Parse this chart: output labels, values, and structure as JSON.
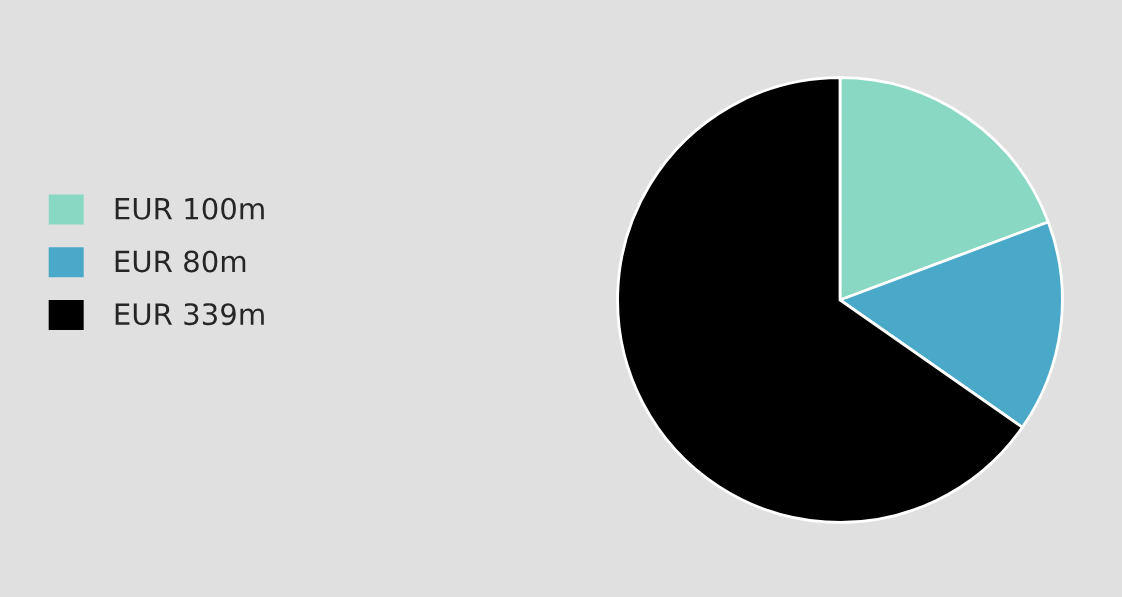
{
  "chart_data": {
    "type": "pie",
    "categories": [
      "EUR 100m",
      "EUR 80m",
      "EUR 339m"
    ],
    "values": [
      19.3,
      15.4,
      65.3
    ],
    "colors": [
      "#88d8c4",
      "#4aa8c9",
      "#000000"
    ],
    "legend": "left"
  }
}
